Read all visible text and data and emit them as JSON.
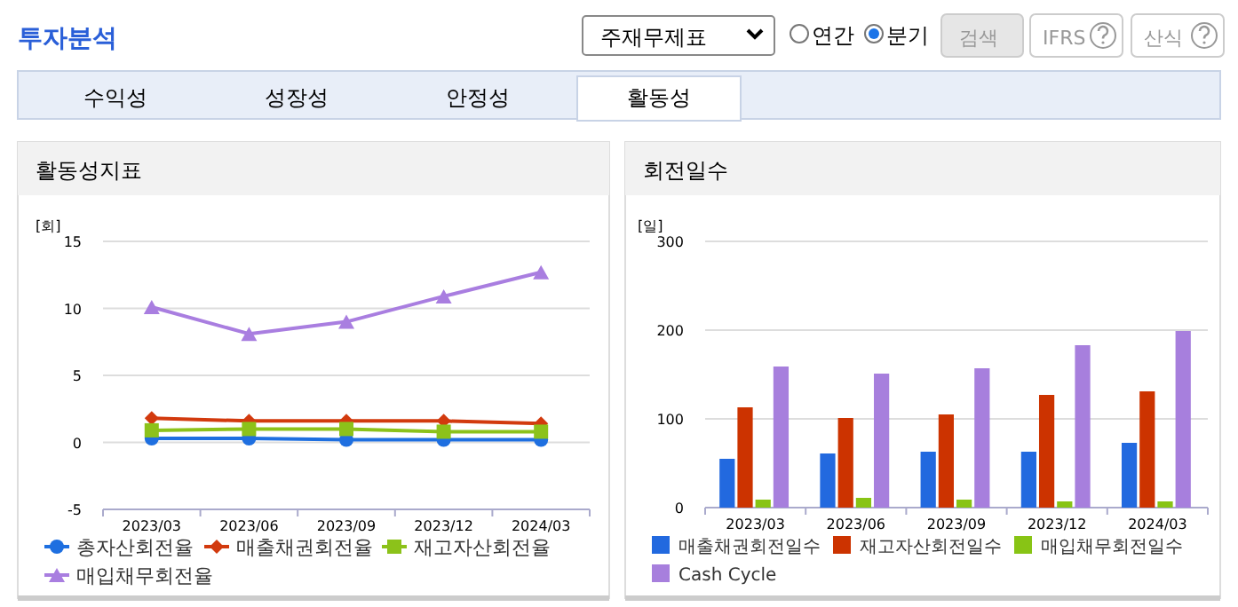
{
  "chart_data": [
    {
      "type": "other",
      "title": "투자분석",
      "annotations": [
        "주재무제표",
        "연간",
        "분기",
        "검색",
        "IFRS",
        "산식",
        "수익성",
        "성장성",
        "안정성",
        "활동성"
      ]
    },
    {
      "type": "line",
      "title": "활동성지표",
      "ylabel": "[회]",
      "categories": [
        "2023/03",
        "2023/06",
        "2023/09",
        "2023/12",
        "2024/03"
      ],
      "ylim": [
        -5,
        15
      ],
      "yticks": [
        -5,
        0,
        5,
        10,
        15
      ],
      "grid": "y",
      "legend": "bottom",
      "series": [
        {
          "name": "총자산회전율",
          "color": "#1e6fe0",
          "marker": "circle",
          "values": [
            0.3,
            0.3,
            0.2,
            0.2,
            0.2
          ]
        },
        {
          "name": "매출채권회전율",
          "color": "#d23a0e",
          "marker": "diamond",
          "values": [
            1.8,
            1.6,
            1.6,
            1.6,
            1.4
          ]
        },
        {
          "name": "재고자산회전율",
          "color": "#8cc21a",
          "marker": "square",
          "values": [
            0.9,
            1.0,
            1.0,
            0.8,
            0.8
          ]
        },
        {
          "name": "매입채무회전율",
          "color": "#a97ee0",
          "marker": "triangle",
          "values": [
            10.1,
            8.1,
            9.0,
            10.9,
            12.7
          ]
        }
      ]
    },
    {
      "type": "bar",
      "title": "회전일수",
      "ylabel": "[일]",
      "categories": [
        "2023/03",
        "2023/06",
        "2023/09",
        "2023/12",
        "2024/03"
      ],
      "ylim": [
        0,
        300
      ],
      "yticks": [
        0,
        100,
        200,
        300
      ],
      "grid": "y",
      "legend": "bottom",
      "series": [
        {
          "name": "매출채권회전일수",
          "color": "#2269df",
          "values": [
            55,
            61,
            63,
            63,
            73
          ]
        },
        {
          "name": "재고자산회전일수",
          "color": "#cc3300",
          "values": [
            113,
            101,
            105,
            127,
            131
          ]
        },
        {
          "name": "매입채무회전일수",
          "color": "#88c415",
          "values": [
            9,
            11,
            9,
            7,
            7
          ]
        },
        {
          "name": "Cash Cycle",
          "color": "#a77fdd",
          "values": [
            159,
            151,
            157,
            183,
            199
          ]
        }
      ]
    }
  ]
}
